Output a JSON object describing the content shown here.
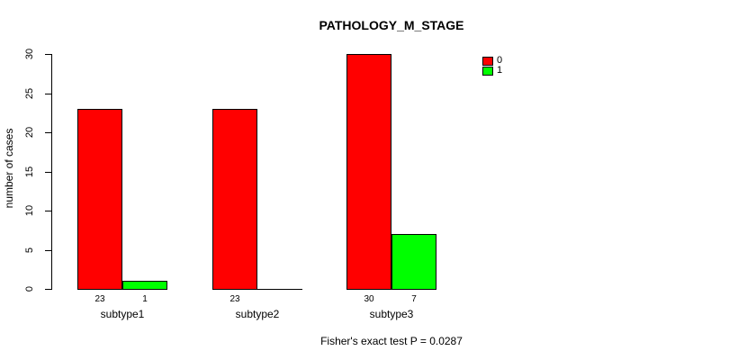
{
  "chart_data": {
    "type": "bar",
    "title": "PATHOLOGY_M_STAGE",
    "ylabel": "number of cases",
    "xlabel": "",
    "categories": [
      "subtype1",
      "subtype2",
      "subtype3"
    ],
    "series": [
      {
        "name": "0",
        "color": "#FF0000",
        "values": [
          23,
          23,
          30
        ]
      },
      {
        "name": "1",
        "color": "#00FF00",
        "values": [
          1,
          0,
          7
        ]
      }
    ],
    "bar_value_labels": [
      [
        "23",
        "1"
      ],
      [
        "23",
        ""
      ],
      [
        "30",
        "7"
      ]
    ],
    "yticks": [
      0,
      5,
      10,
      15,
      20,
      25,
      30
    ],
    "ylim": [
      0,
      30
    ],
    "grid": false,
    "legend_position": "top-right",
    "footer": "Fisher's exact test P = 0.0287",
    "colors": {
      "background": "#FFFFFF",
      "axis": "#000000",
      "text": "#000000"
    }
  }
}
